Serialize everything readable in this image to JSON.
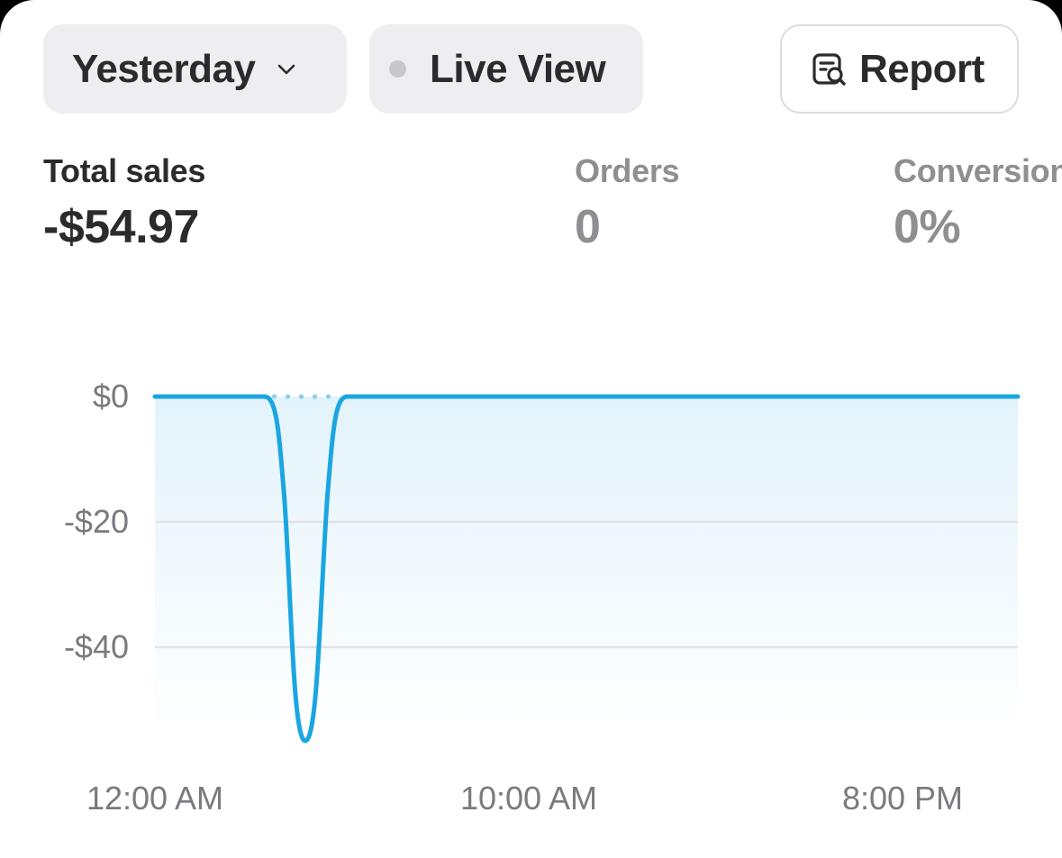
{
  "toolbar": {
    "date_label": "Yesterday",
    "live_label": "Live View",
    "report_label": "Report"
  },
  "metrics": [
    {
      "label": "Total sales",
      "value": "-$54.97"
    },
    {
      "label": "Orders",
      "value": "0"
    },
    {
      "label": "Conversion rate",
      "value": "0%"
    }
  ],
  "colors": {
    "line": "#1aa6e0",
    "grid": "#e3e3e6",
    "muted_text": "#8e8e93",
    "primary_text": "#2b2b2d"
  },
  "icons": {
    "date_dropdown": "chevron-down-icon",
    "live_status": "status-dot-icon",
    "report": "report-search-icon"
  },
  "chart_data": {
    "type": "line",
    "ylim": [
      -55,
      0
    ],
    "y_ticks": [
      {
        "value": 0,
        "label": "$0"
      },
      {
        "value": -20,
        "label": "-$20"
      },
      {
        "value": -40,
        "label": "-$40"
      }
    ],
    "x_ticks": [
      {
        "hour": 0,
        "label": "12:00 AM"
      },
      {
        "hour": 10,
        "label": "10:00 AM"
      },
      {
        "hour": 20,
        "label": "8:00 PM"
      }
    ],
    "series": [
      {
        "x": [
          0,
          1,
          2,
          3,
          4,
          5,
          6,
          7,
          8,
          9,
          10,
          11,
          12,
          13,
          14,
          15,
          16,
          17,
          18,
          19,
          20,
          21,
          22,
          23
        ],
        "values": [
          0,
          0,
          0,
          0,
          -54.97,
          0,
          0,
          0,
          0,
          0,
          0,
          0,
          0,
          0,
          0,
          0,
          0,
          0,
          0,
          0,
          0,
          0,
          0,
          0
        ]
      }
    ]
  }
}
